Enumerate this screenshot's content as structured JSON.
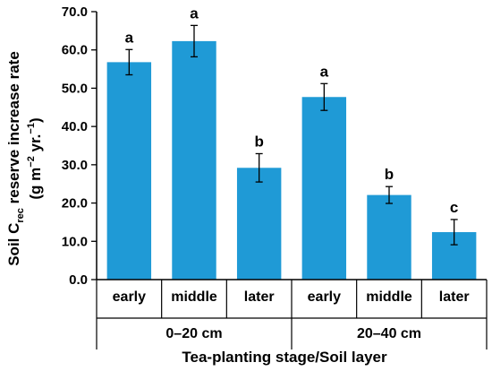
{
  "chart_data": {
    "type": "bar",
    "title": "",
    "ylabel_line1_prefix": "Soil C",
    "ylabel_line1_sub": "rec",
    "ylabel_line1_suffix": " reserve increase rate",
    "ylabel_line2_a": "(g m",
    "ylabel_line2_sup1": "−2",
    "ylabel_line2_b": " yr.",
    "ylabel_line2_sup2": "−1",
    "ylabel_line2_c": ")",
    "xlabel": "Tea-planting stage/Soil layer",
    "ylim": [
      0,
      70
    ],
    "yticks": [
      "0.0",
      "10.0",
      "20.0",
      "30.0",
      "40.0",
      "50.0",
      "60.0",
      "70.0"
    ],
    "categories": [
      "early",
      "middle",
      "later",
      "early",
      "middle",
      "later"
    ],
    "groups": [
      {
        "label": "0–20 cm",
        "span": 3
      },
      {
        "label": "20–40 cm",
        "span": 3
      }
    ],
    "values": [
      56.8,
      62.3,
      29.2,
      47.7,
      22.1,
      12.4
    ],
    "errors": [
      3.3,
      4.1,
      3.7,
      3.5,
      2.2,
      3.3
    ],
    "significance": [
      "a",
      "a",
      "b",
      "a",
      "b",
      "c"
    ],
    "bar_color": "#1f9ad6",
    "grid": false,
    "legend": "none"
  }
}
